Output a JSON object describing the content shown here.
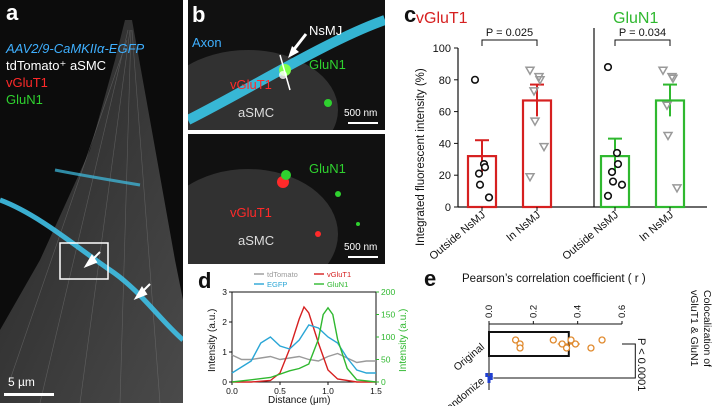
{
  "panel_a": {
    "label": "a",
    "legend": {
      "egfp": "AAV2/9-CaMKIIα-EGFP",
      "tdtomato": "tdTomato⁺ aSMC",
      "vglut1": "vGluT1",
      "glun1": "GluN1"
    },
    "scalebar": "5 µm"
  },
  "panel_b": {
    "label": "b",
    "top": {
      "axon": "Axon",
      "nsmj": "NsMJ",
      "glun1": "GluN1",
      "vglut1": "vGluT1",
      "asmc": "aSMC",
      "scalebar": "500 nm"
    },
    "bottom": {
      "glun1": "GluN1",
      "vglut1": "vGluT1",
      "asmc": "aSMC",
      "scalebar": "500 nm"
    }
  },
  "panel_c": {
    "label": "c",
    "ylabel": "Integrated fluorescent intensity (%)",
    "groups": [
      {
        "title": "vGluT1",
        "color": "#d62020",
        "p": "P = 0.025"
      },
      {
        "title": "GluN1",
        "color": "#2fb82f",
        "p": "P = 0.034"
      }
    ],
    "categories": [
      "Outside NsMJ",
      "In NsMJ"
    ],
    "yticks": [
      "0",
      "20",
      "40",
      "60",
      "80",
      "100"
    ]
  },
  "panel_d": {
    "label": "d",
    "legend": [
      "tdTomato",
      "vGluT1",
      "EGFP",
      "GluN1"
    ],
    "xlabel": "Distance (μm)",
    "ylabel_left": "Intensity (a.u.)",
    "ylabel_right": "Intensity (a.u.)",
    "xticks": [
      "0.0",
      "0.5",
      "1.0",
      "1.5"
    ],
    "yticks_left": [
      "0",
      "1",
      "2",
      "3"
    ],
    "yticks_right": [
      "0",
      "50",
      "100",
      "150",
      "200"
    ]
  },
  "panel_e": {
    "label": "e",
    "title": "Pearson’s correlation coefficient ( r )",
    "xticks": [
      "0.0",
      "0.2",
      "0.4",
      "0.6"
    ],
    "categories": [
      "Original",
      "Randomize"
    ],
    "p": "P < 0.0001",
    "side_label_1": "Colocalization of",
    "side_label_2": "vGluT1 & GluN1"
  },
  "chart_data": [
    {
      "type": "bar",
      "title": "vGluT1",
      "categories": [
        "Outside NsMJ",
        "In NsMJ"
      ],
      "ylabel": "Integrated fluorescent intensity (%)",
      "ylim": [
        0,
        100
      ],
      "values": [
        32,
        67
      ],
      "sem": [
        10,
        10
      ],
      "points": [
        [
          80,
          27,
          25,
          21,
          14,
          6
        ],
        [
          86,
          82,
          80,
          73,
          54,
          38,
          19
        ]
      ],
      "annotation": "P = 0.025",
      "color": "#d62020"
    },
    {
      "type": "bar",
      "title": "GluN1",
      "categories": [
        "Outside NsMJ",
        "In NsMJ"
      ],
      "ylabel": "Integrated fluorescent intensity (%)",
      "ylim": [
        0,
        100
      ],
      "values": [
        32,
        67
      ],
      "sem": [
        11,
        10
      ],
      "points": [
        [
          88,
          34,
          27,
          22,
          16,
          14,
          7
        ],
        [
          86,
          82,
          81,
          64,
          45,
          12
        ]
      ],
      "annotation": "P = 0.034",
      "color": "#2fb82f"
    },
    {
      "type": "line",
      "xlabel": "Distance (μm)",
      "ylabel": "Intensity (a.u.)",
      "xlim": [
        0,
        1.5
      ],
      "ylim_left": [
        0,
        3
      ],
      "ylim_right": [
        0,
        200
      ],
      "series": [
        {
          "name": "tdTomato",
          "axis": "left",
          "color": "#9a9a9a",
          "x": [
            0,
            0.1,
            0.2,
            0.3,
            0.4,
            0.5,
            0.6,
            0.7,
            0.8,
            0.9,
            1.0,
            1.1,
            1.2,
            1.3,
            1.4,
            1.5
          ],
          "y": [
            0.9,
            0.75,
            0.75,
            0.8,
            0.85,
            0.75,
            0.8,
            0.85,
            0.75,
            0.7,
            0.85,
            0.95,
            0.8,
            0.65,
            0.7,
            0.7
          ]
        },
        {
          "name": "vGluT1",
          "axis": "left",
          "color": "#d62020",
          "x": [
            0,
            0.2,
            0.4,
            0.5,
            0.6,
            0.7,
            0.75,
            0.8,
            0.9,
            1.0,
            1.1,
            1.3,
            1.5
          ],
          "y": [
            0,
            0,
            0.05,
            0.3,
            1.1,
            2.1,
            2.5,
            2.3,
            1.3,
            0.4,
            0.1,
            0,
            0
          ]
        },
        {
          "name": "EGFP",
          "axis": "left",
          "color": "#2aa6d6",
          "x": [
            0,
            0.1,
            0.2,
            0.3,
            0.4,
            0.5,
            0.6,
            0.7,
            0.8,
            0.9,
            1.0,
            1.1,
            1.2,
            1.3,
            1.4,
            1.5
          ],
          "y": [
            0.3,
            0.5,
            0.7,
            1.3,
            1.5,
            1.2,
            1.1,
            1.4,
            1.9,
            1.8,
            1.5,
            1.3,
            0.8,
            0.4,
            0.3,
            0.3
          ]
        },
        {
          "name": "GluN1",
          "axis": "right",
          "color": "#2fb82f",
          "x": [
            0,
            0.2,
            0.4,
            0.6,
            0.7,
            0.8,
            0.9,
            0.95,
            1.0,
            1.05,
            1.1,
            1.2,
            1.3,
            1.5
          ],
          "y": [
            0,
            5,
            10,
            25,
            30,
            40,
            95,
            150,
            165,
            150,
            95,
            30,
            5,
            0
          ]
        }
      ]
    },
    {
      "type": "bar",
      "title": "Pearson’s correlation coefficient ( r )",
      "categories": [
        "Original",
        "Randomize"
      ],
      "xlim": [
        0,
        0.6
      ],
      "values": [
        0.36,
        0.0
      ],
      "points": [
        [
          0.12,
          0.14,
          0.14,
          0.29,
          0.33,
          0.35,
          0.37,
          0.39,
          0.46,
          0.51
        ],
        [
          -0.01,
          0.0,
          0.0,
          0.01,
          0.01
        ]
      ],
      "annotation": "P < 0.0001"
    }
  ]
}
